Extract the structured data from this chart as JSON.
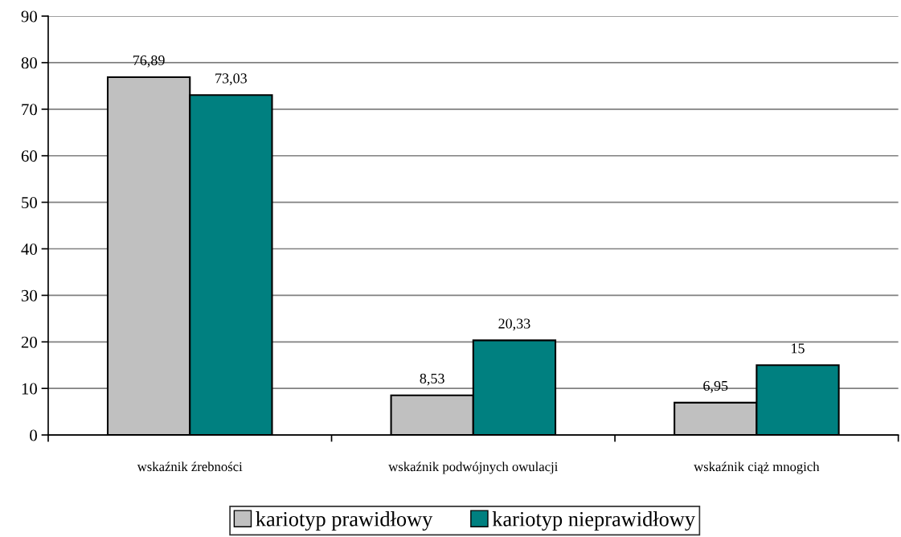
{
  "chart_data": {
    "type": "bar",
    "categories": [
      "wskaźnik źrebności",
      "wskaźnik podwójnych owulacji",
      "wskaźnik ciąż mnogich"
    ],
    "series": [
      {
        "name": "kariotyp prawidłowy",
        "color": "#c0c0c0",
        "values": [
          76.89,
          8.53,
          6.95
        ],
        "value_labels": [
          "76,89",
          "8,53",
          "6,95"
        ]
      },
      {
        "name": "kariotyp nieprawidłowy",
        "color": "#008080",
        "values": [
          73.03,
          20.33,
          15
        ],
        "value_labels": [
          "73,03",
          "20,33",
          "15"
        ]
      }
    ],
    "ylim": [
      0,
      90
    ],
    "yticks": [
      0,
      10,
      20,
      30,
      40,
      50,
      60,
      70,
      80,
      90
    ],
    "grid": "y",
    "legend": "bottom"
  }
}
